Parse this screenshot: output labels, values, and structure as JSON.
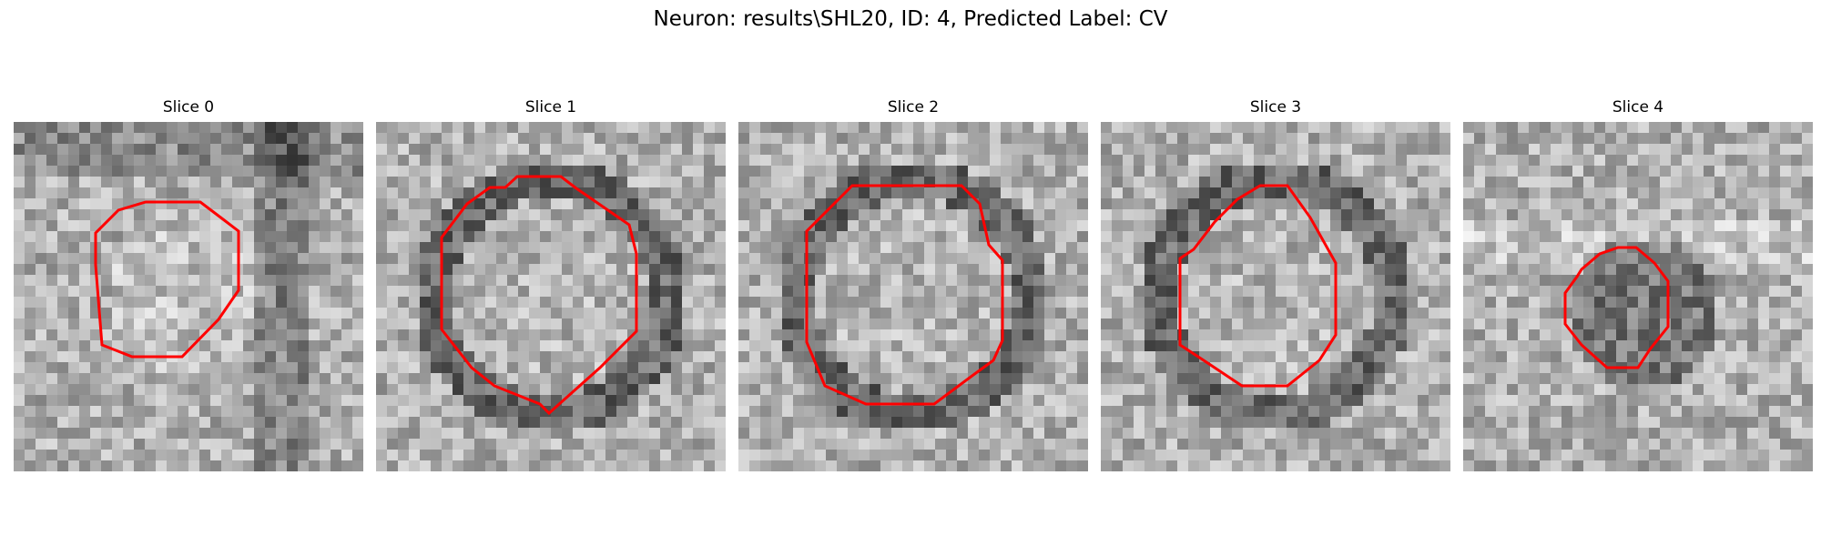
{
  "figure": {
    "title": "Neuron: results\\SHL20, ID: 4, Predicted Label: CV",
    "outline_color": "#ff0000"
  },
  "panels": [
    {
      "title": "Slice 0",
      "seed": 11,
      "dark_region": "right-band"
    },
    {
      "title": "Slice 1",
      "seed": 23,
      "dark_region": "ring"
    },
    {
      "title": "Slice 2",
      "seed": 37,
      "dark_region": "ring"
    },
    {
      "title": "Slice 3",
      "seed": 51,
      "dark_region": "ring"
    },
    {
      "title": "Slice 4",
      "seed": 67,
      "dark_region": "fill"
    }
  ]
}
